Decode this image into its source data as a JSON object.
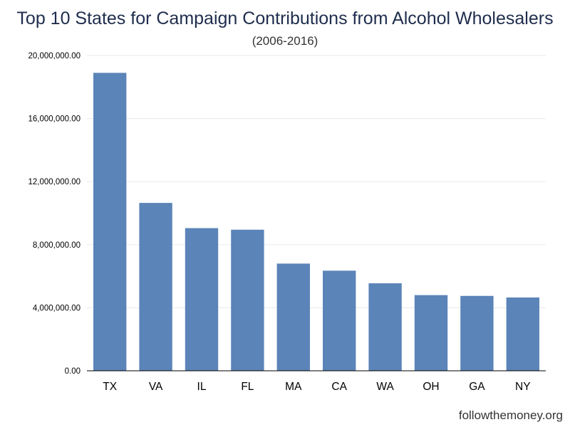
{
  "chart_data": {
    "type": "bar",
    "title": "Top 10 States for Campaign Contributions from Alcohol Wholesalers",
    "subtitle": "(2006-2016)",
    "xlabel": "",
    "ylabel": "",
    "categories": [
      "TX",
      "VA",
      "IL",
      "FL",
      "MA",
      "CA",
      "WA",
      "OH",
      "GA",
      "NY"
    ],
    "values": [
      18900000,
      10650000,
      9050000,
      8950000,
      6800000,
      6350000,
      5550000,
      4800000,
      4750000,
      4650000
    ],
    "ylim": [
      0,
      20000000
    ],
    "yticks": [
      0,
      4000000,
      8000000,
      12000000,
      16000000,
      20000000
    ],
    "ytick_labels": [
      "0.00",
      "4,000,000.00",
      "8,000,000.00",
      "12,000,000.00",
      "16,000,000.00",
      "20,000,000.00"
    ],
    "grid": true,
    "bar_color": "#5b84b8",
    "grid_color": "#e8eaee",
    "axis_color": "#000000"
  },
  "source": "followthemoney.org"
}
